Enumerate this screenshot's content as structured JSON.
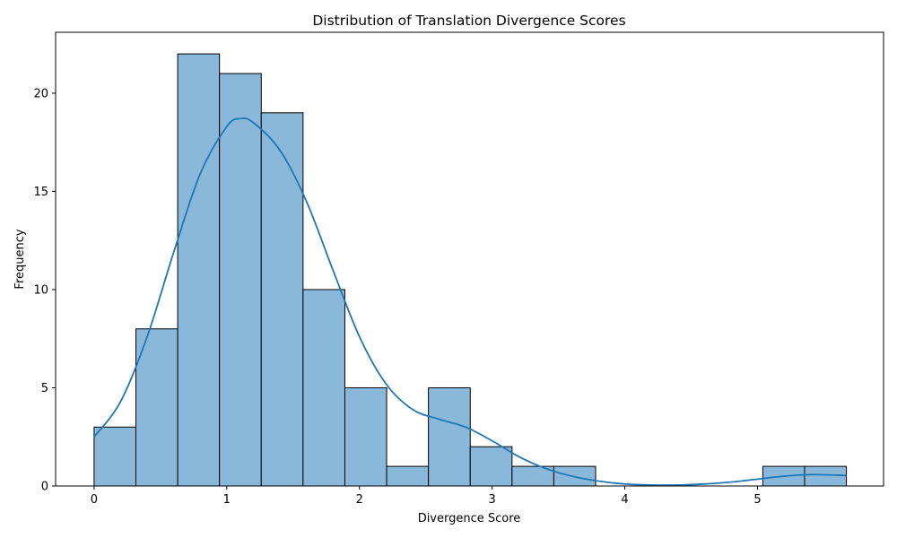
{
  "chart_data": {
    "type": "bar",
    "subtype": "histogram-with-kde",
    "title": "Distribution of Translation Divergence Scores",
    "xlabel": "Divergence Score",
    "ylabel": "Frequency",
    "xlim": [
      -0.29,
      5.95
    ],
    "ylim": [
      0,
      23.1
    ],
    "xticks": [
      0,
      1,
      2,
      3,
      4,
      5
    ],
    "yticks": [
      0,
      5,
      10,
      15,
      20
    ],
    "bin_edges": [
      0,
      0.315,
      0.63,
      0.945,
      1.26,
      1.575,
      1.89,
      2.205,
      2.52,
      2.835,
      3.15,
      3.465,
      3.78,
      4.095,
      4.41,
      4.725,
      5.04,
      5.355,
      5.67
    ],
    "counts": [
      3,
      8,
      22,
      21,
      19,
      10,
      5,
      1,
      5,
      2,
      1,
      1,
      0,
      0,
      0,
      0,
      1,
      1
    ],
    "kde": {
      "x": [
        0,
        0.2,
        0.4,
        0.6,
        0.8,
        1.0,
        1.1,
        1.2,
        1.4,
        1.6,
        1.8,
        2.0,
        2.2,
        2.4,
        2.6,
        2.8,
        3.0,
        3.2,
        3.4,
        3.6,
        3.8,
        4.0,
        4.2,
        4.4,
        4.6,
        4.8,
        5.0,
        5.2,
        5.4,
        5.6,
        5.67
      ],
      "y": [
        2.5,
        4.3,
        7.6,
        11.9,
        15.9,
        18.3,
        18.7,
        18.5,
        17.1,
        14.5,
        11.0,
        7.6,
        5.2,
        3.9,
        3.4,
        3.0,
        2.3,
        1.5,
        0.9,
        0.5,
        0.25,
        0.1,
        0.05,
        0.05,
        0.1,
        0.2,
        0.35,
        0.5,
        0.58,
        0.55,
        0.53
      ]
    },
    "colors": {
      "bar_fill": "#8ab8db",
      "bar_edge": "#000000",
      "kde_line": "#1f77b4"
    },
    "grid": false,
    "legend": "none"
  }
}
